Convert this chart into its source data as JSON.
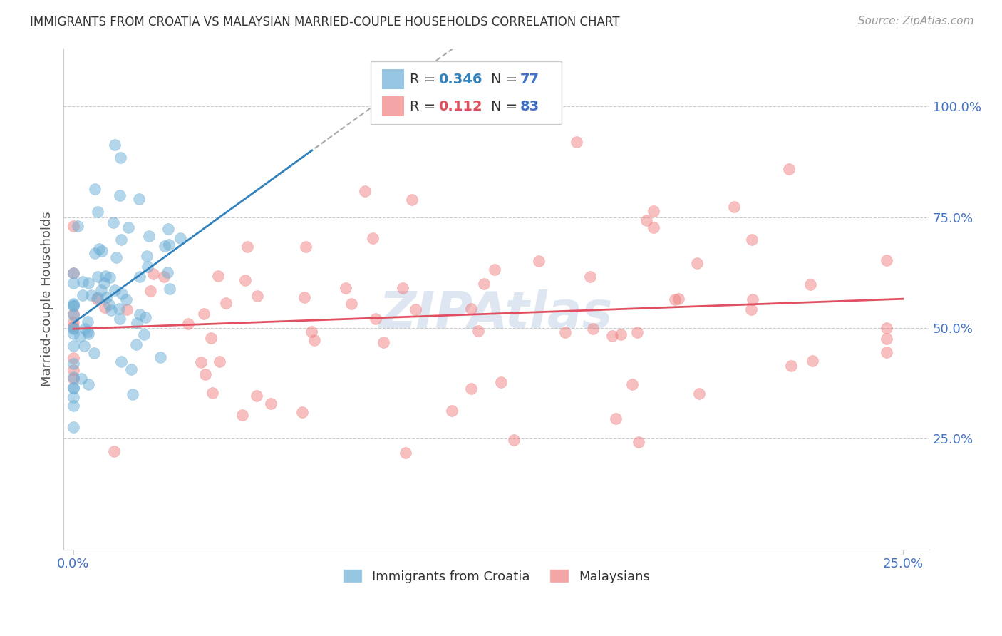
{
  "title": "IMMIGRANTS FROM CROATIA VS MALAYSIAN MARRIED-COUPLE HOUSEHOLDS CORRELATION CHART",
  "source": "Source: ZipAtlas.com",
  "ylabel": "Married-couple Households",
  "croatia_R": 0.346,
  "croatia_N": 77,
  "malaysia_R": 0.112,
  "malaysia_N": 83,
  "blue_color": "#6baed6",
  "pink_color": "#f08080",
  "blue_line_color": "#3182bd",
  "pink_line_color": "#e05060",
  "axis_color": "#4472c4",
  "watermark_color": "#a0b8d8",
  "grid_color": "#cccccc",
  "background_color": "#ffffff"
}
